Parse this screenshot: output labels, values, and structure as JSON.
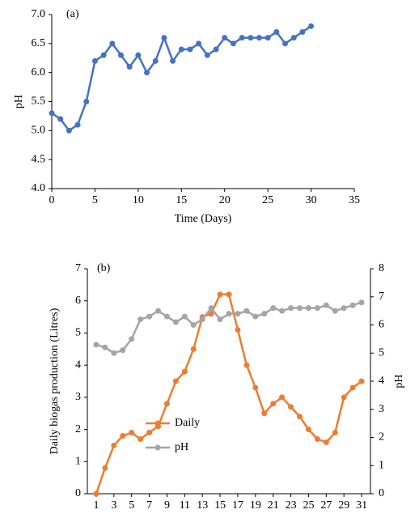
{
  "chart_data": [
    {
      "type": "line",
      "annotation": "(a)",
      "x_label": "Time (Days)",
      "y_label": "pH",
      "x": [
        0,
        1,
        2,
        3,
        4,
        5,
        6,
        7,
        8,
        9,
        10,
        11,
        12,
        13,
        14,
        15,
        16,
        17,
        18,
        19,
        20,
        21,
        22,
        23,
        24,
        25,
        26,
        27,
        28,
        29,
        30
      ],
      "series": [
        {
          "color": "#4472c4",
          "values": [
            5.3,
            5.2,
            5.0,
            5.1,
            5.5,
            6.2,
            6.3,
            6.5,
            6.3,
            6.1,
            6.3,
            6.0,
            6.2,
            6.6,
            6.2,
            6.4,
            6.4,
            6.5,
            6.3,
            6.4,
            6.6,
            6.5,
            6.6,
            6.6,
            6.6,
            6.6,
            6.7,
            6.5,
            6.6,
            6.7,
            6.8
          ]
        }
      ],
      "xlim": [
        0,
        35
      ],
      "xticks": [
        0,
        5,
        10,
        15,
        20,
        25,
        30,
        35
      ],
      "ylim": [
        4,
        7
      ],
      "yticks": [
        {
          "value": 4,
          "label": "4.0"
        },
        4.5,
        {
          "value": 5,
          "label": "5.0"
        },
        5.5,
        {
          "value": 6,
          "label": "6.0"
        },
        6.5,
        {
          "value": 7,
          "label": "7.0"
        }
      ]
    },
    {
      "type": "line",
      "annotation": "(b)",
      "x_label": "Time (Days)",
      "y_label": "Daily biogas production (Litres)",
      "y2_label": "pH",
      "x": [
        1,
        2,
        3,
        4,
        5,
        6,
        7,
        8,
        9,
        10,
        11,
        12,
        13,
        14,
        15,
        16,
        17,
        18,
        19,
        20,
        21,
        22,
        23,
        24,
        25,
        26,
        27,
        28,
        29,
        30,
        31
      ],
      "series": [
        {
          "name": "Daily",
          "color": "#ed7d31",
          "values": [
            0,
            0.8,
            1.5,
            1.8,
            1.9,
            1.7,
            1.9,
            2.1,
            2.8,
            3.5,
            3.8,
            4.5,
            5.5,
            5.6,
            6.2,
            6.2,
            5.1,
            4.0,
            3.3,
            2.5,
            2.8,
            3.0,
            2.7,
            2.4,
            2.0,
            1.7,
            1.6,
            1.9,
            3.0,
            3.3,
            3.5
          ]
        },
        {
          "name": "pH",
          "color": "#a5a5a5",
          "axis": "y2",
          "values": [
            5.3,
            5.2,
            5.0,
            5.1,
            5.5,
            6.2,
            6.3,
            6.5,
            6.3,
            6.1,
            6.3,
            6.0,
            6.2,
            6.6,
            6.2,
            6.4,
            6.4,
            6.5,
            6.3,
            6.4,
            6.6,
            6.5,
            6.6,
            6.6,
            6.6,
            6.6,
            6.7,
            6.5,
            6.6,
            6.7,
            6.8
          ]
        }
      ],
      "xlim": [
        0,
        32
      ],
      "xticks": [
        1,
        3,
        5,
        7,
        9,
        11,
        13,
        15,
        17,
        19,
        21,
        23,
        25,
        27,
        29,
        31
      ],
      "ylim": [
        0,
        7
      ],
      "yticks": [
        0,
        1,
        2,
        3,
        4,
        5,
        6,
        7
      ],
      "y2lim": [
        0,
        8
      ],
      "y2ticks": [
        0,
        1,
        2,
        3,
        4,
        5,
        6,
        7,
        8
      ]
    }
  ]
}
